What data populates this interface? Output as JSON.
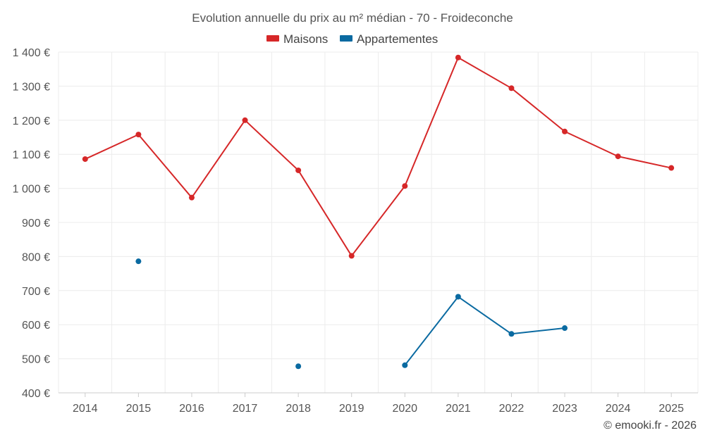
{
  "chart_data": {
    "type": "line",
    "title": "Evolution annuelle du prix au m² médian - 70 - Froideconche",
    "categories": [
      "2014",
      "2015",
      "2016",
      "2017",
      "2018",
      "2019",
      "2020",
      "2021",
      "2022",
      "2023",
      "2024",
      "2025"
    ],
    "ylim": [
      400,
      1400
    ],
    "yticks": [
      400,
      500,
      600,
      700,
      800,
      900,
      1000,
      1100,
      1200,
      1300,
      1400
    ],
    "ytick_labels": [
      "400 €",
      "500 €",
      "600 €",
      "700 €",
      "800 €",
      "900 €",
      "1 000 €",
      "1 100 €",
      "1 200 €",
      "1 300 €",
      "1 400 €"
    ],
    "grid": true,
    "legend_position": "top-center",
    "series": [
      {
        "name": "Maisons",
        "color": "#d62728",
        "values": [
          1086,
          1158,
          973,
          1200,
          1053,
          802,
          1007,
          1384,
          1294,
          1167,
          1094,
          1060
        ]
      },
      {
        "name": "Appartementes",
        "color": "#0a6aa1",
        "values": [
          null,
          786,
          null,
          null,
          478,
          null,
          481,
          682,
          573,
          590,
          null,
          null
        ]
      }
    ]
  },
  "credit": "© emooki.fr - 2026"
}
